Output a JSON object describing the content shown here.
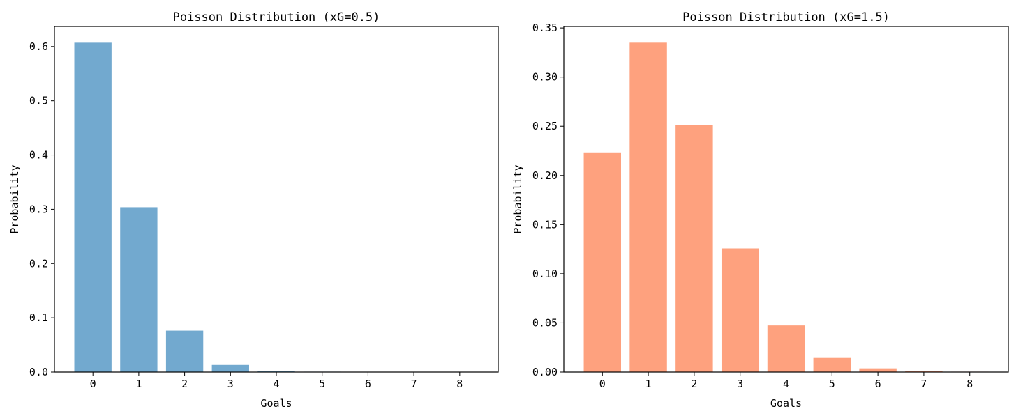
{
  "chart_data": [
    {
      "type": "bar",
      "title": "Poisson Distribution (xG=0.5)",
      "xlabel": "Goals",
      "ylabel": "Probability",
      "categories": [
        "0",
        "1",
        "2",
        "3",
        "4",
        "5",
        "6",
        "7",
        "8"
      ],
      "values": [
        0.6065,
        0.3033,
        0.0758,
        0.0126,
        0.0016,
        0.0002,
        1e-05,
        1e-06,
        1e-07
      ],
      "ylim": [
        0,
        0.637
      ],
      "yticks": [
        0.0,
        0.1,
        0.2,
        0.3,
        0.4,
        0.5,
        0.6
      ],
      "ytick_labels": [
        "0.0",
        "0.1",
        "0.2",
        "0.3",
        "0.4",
        "0.5",
        "0.6"
      ],
      "grid": false,
      "color": "#72a9cf"
    },
    {
      "type": "bar",
      "title": "Poisson Distribution (xG=1.5)",
      "xlabel": "Goals",
      "ylabel": "Probability",
      "categories": [
        "0",
        "1",
        "2",
        "3",
        "4",
        "5",
        "6",
        "7",
        "8"
      ],
      "values": [
        0.2231,
        0.3347,
        0.251,
        0.1255,
        0.0471,
        0.0141,
        0.0035,
        0.0008,
        0.0001
      ],
      "ylim": [
        0,
        0.3515
      ],
      "yticks": [
        0.0,
        0.05,
        0.1,
        0.15,
        0.2,
        0.25,
        0.3,
        0.35
      ],
      "ytick_labels": [
        "0.00",
        "0.05",
        "0.10",
        "0.15",
        "0.20",
        "0.25",
        "0.30",
        "0.35"
      ],
      "grid": false,
      "color": "#fea17e"
    }
  ]
}
